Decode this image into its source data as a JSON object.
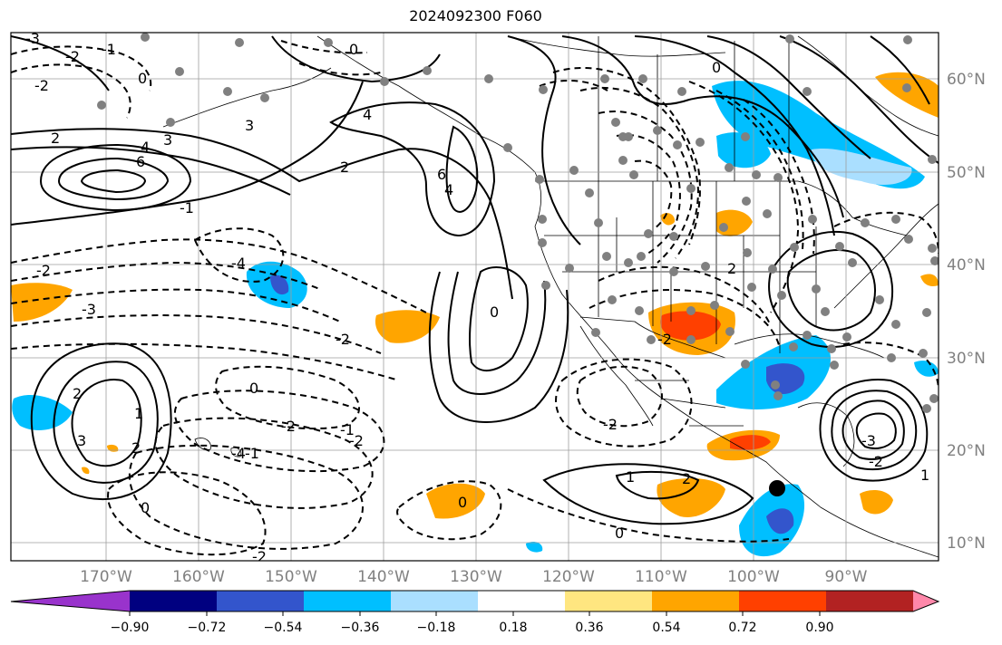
{
  "title": "2024092300 F060",
  "map": {
    "lon_range": [
      -180,
      -81
    ],
    "lat_range": [
      8,
      65
    ],
    "grid": true,
    "lon_ticks": [
      "170°W",
      "160°W",
      "150°W",
      "140°W",
      "130°W",
      "120°W",
      "110°W",
      "100°W",
      "90°W"
    ],
    "lat_ticks": [
      "10°N",
      "20°N",
      "30°N",
      "40°N",
      "50°N",
      "60°N"
    ],
    "contour_labels": [
      "-3",
      "-2",
      "-1",
      "0",
      "0",
      "-2",
      "2",
      "3",
      "4",
      "6",
      "2",
      "3",
      "4",
      "6",
      "-2",
      "-4",
      "-3",
      "-2",
      "0",
      "-2",
      "-1",
      "-4",
      "2",
      "3",
      "2",
      "1",
      "0",
      "-1",
      "-2",
      "0",
      "1",
      "2",
      "-2",
      "0",
      "-2",
      "0",
      "-2",
      "2",
      "4",
      "-3",
      "-2",
      "1",
      "0",
      "-1"
    ],
    "shading_colors": {
      "purple": "#9933cc",
      "navy": "#000080",
      "royal_blue": "#3355cc",
      "deep_sky": "#00bfff",
      "light_blue": "#aadfff",
      "yellow": "#ffe680",
      "orange": "#ffa500",
      "red_orange": "#ff4000",
      "dark_red": "#b22222",
      "pink": "#ff88aa"
    },
    "point_marker_color": "#808080",
    "storm_marker_color": "#000000"
  },
  "colorbar": {
    "colors": [
      "#9933cc",
      "#000080",
      "#3355cc",
      "#00bfff",
      "#aadfff",
      "#ffffff",
      "#ffe680",
      "#ffa500",
      "#ff4000",
      "#b22222",
      "#ff88aa"
    ],
    "labels": [
      "−0.90",
      "−0.72",
      "−0.54",
      "−0.36",
      "−0.18",
      "0.18",
      "0.36",
      "0.54",
      "0.72",
      "0.90"
    ]
  }
}
